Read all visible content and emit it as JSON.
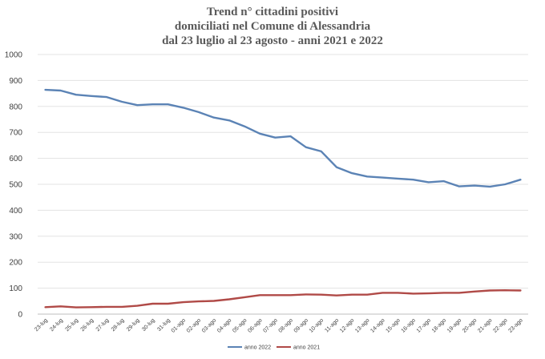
{
  "chart_data": {
    "type": "line",
    "title_lines": [
      "Trend n° cittadini positivi",
      "domiciliati nel Comune di Alessandria",
      "dal 23 luglio al 23 agosto - anni 2021 e 2022"
    ],
    "xlabel": "",
    "ylabel": "",
    "ylim": [
      0,
      1000
    ],
    "yticks": [
      "0",
      "100",
      "200",
      "300",
      "400",
      "500",
      "600",
      "700",
      "800",
      "900",
      "1000"
    ],
    "grid": true,
    "legend_position": "bottom",
    "categories": [
      "23-lug",
      "24-lug",
      "25-lug",
      "26-lug",
      "27-lug",
      "28-lug",
      "29-lug",
      "30-lug",
      "31-lug",
      "01-ago",
      "02-ago",
      "03-ago",
      "04-ago",
      "05-ago",
      "06-ago",
      "07-ago",
      "08-ago",
      "09-ago",
      "10-ago",
      "11-ago",
      "12-ago",
      "13-ago",
      "14-ago",
      "15-ago",
      "16-ago",
      "17-ago",
      "18-ago",
      "19-ago",
      "20-ago",
      "21-ago",
      "22-ago",
      "23-ago"
    ],
    "series": [
      {
        "name": "anno 2022",
        "color": "#5b83b5",
        "values": [
          864,
          861,
          845,
          840,
          836,
          818,
          805,
          808,
          808,
          795,
          778,
          757,
          746,
          723,
          695,
          680,
          685,
          643,
          627,
          566,
          543,
          530,
          526,
          522,
          518,
          508,
          512,
          492,
          495,
          491,
          500,
          518
        ]
      },
      {
        "name": "anno 2021",
        "color": "#b04a47",
        "values": [
          27,
          30,
          26,
          27,
          28,
          28,
          32,
          40,
          40,
          46,
          49,
          51,
          57,
          65,
          73,
          73,
          73,
          76,
          75,
          72,
          75,
          75,
          82,
          82,
          79,
          80,
          82,
          82,
          87,
          91,
          92,
          91
        ]
      }
    ]
  }
}
